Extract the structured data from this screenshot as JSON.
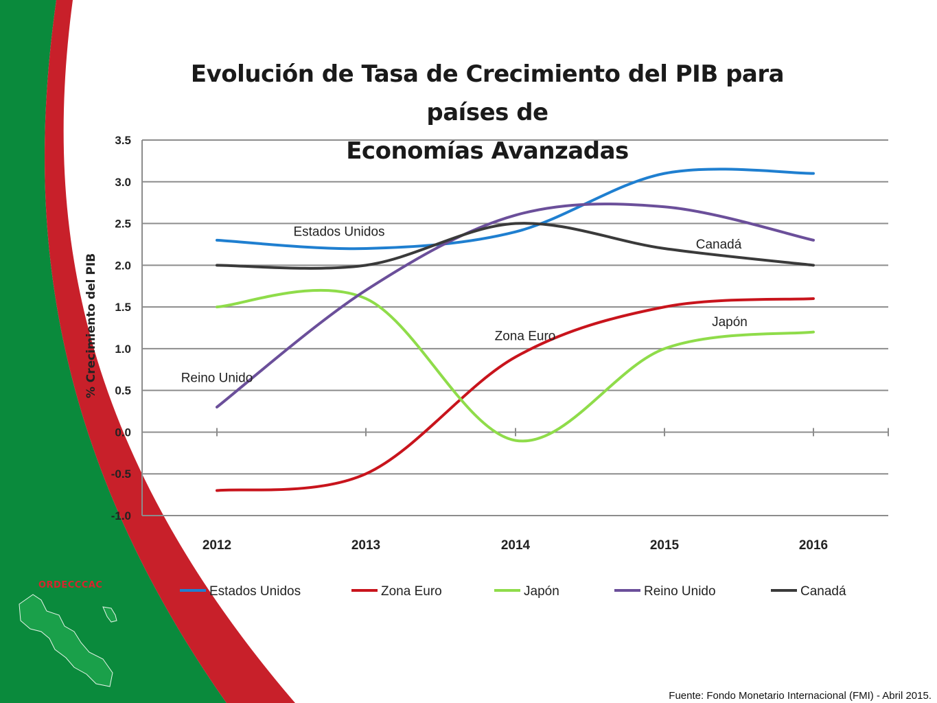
{
  "slide": {
    "brand": "ORDECCCAC",
    "colors": {
      "green": "#0a8a3c",
      "red": "#c8202a"
    },
    "source": "Fuente: Fondo Monetario Internacional (FMI) -  Abril 2015."
  },
  "chart_data": {
    "type": "line",
    "title": "Evolución de Tasa de Crecimiento del PIB para países de Economías Avanzadas",
    "title_lines": [
      "Evolución de Tasa de Crecimiento del PIB para países de",
      "Economías Avanzadas"
    ],
    "ylabel": "% Crecimiento del PIB",
    "xlabel": "",
    "categories": [
      "2012",
      "2013",
      "2014",
      "2015",
      "2016"
    ],
    "ylim": [
      -1.0,
      3.5
    ],
    "yticks": [
      "3.5",
      "3.0",
      "2.5",
      "2.0",
      "1.5",
      "1.0",
      "0.5",
      "0.0",
      "-0.5",
      "-1.0"
    ],
    "grid": true,
    "legend_position": "bottom",
    "series": [
      {
        "name": "Estados Unidos",
        "color": "#1f7fd0",
        "values": [
          2.3,
          2.2,
          2.4,
          3.1,
          3.1
        ]
      },
      {
        "name": "Zona Euro",
        "color": "#c8141c",
        "values": [
          -0.7,
          -0.5,
          0.9,
          1.5,
          1.6
        ]
      },
      {
        "name": "Japón",
        "color": "#8fdc4a",
        "values": [
          1.5,
          1.6,
          -0.1,
          1.0,
          1.2
        ]
      },
      {
        "name": "Reino Unido",
        "color": "#6b4f9a",
        "values": [
          0.3,
          1.7,
          2.6,
          2.7,
          2.3
        ]
      },
      {
        "name": "Canadá",
        "color": "#3a3a3a",
        "values": [
          2.0,
          2.0,
          2.5,
          2.2,
          2.0
        ]
      }
    ],
    "annotations": [
      {
        "text": "Estados Unidos",
        "x": "2013",
        "y": 2.4
      },
      {
        "text": "Canadá",
        "x": "2015",
        "y": 2.25
      },
      {
        "text": "Zona Euro",
        "x": "2014",
        "y": 1.15
      },
      {
        "text": "Japón",
        "x": "2015",
        "y": 1.32
      },
      {
        "text": "Reino Unido",
        "x": "2012",
        "y": 0.65
      }
    ]
  }
}
